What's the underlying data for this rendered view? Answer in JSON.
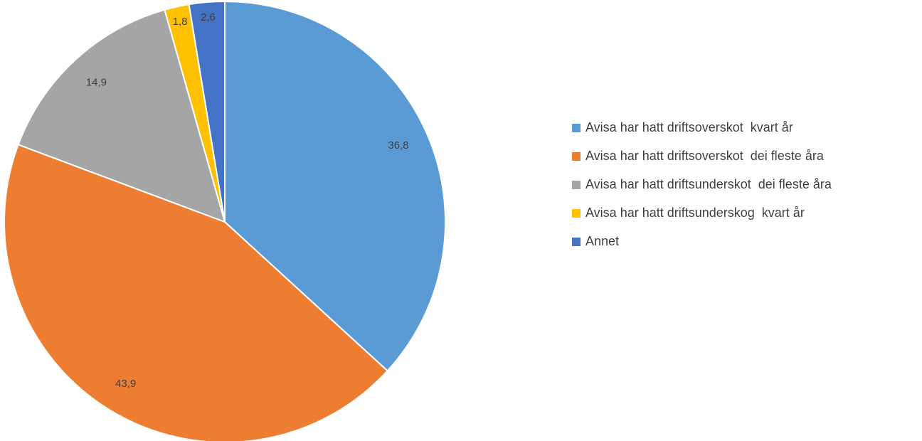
{
  "chart_data": {
    "type": "pie",
    "title": "",
    "start_angle_deg": 0,
    "direction": "clockwise",
    "legend_position": "right",
    "slices": [
      {
        "label": "Avisa har hatt driftsoverskot  kvart år",
        "value": 36.8,
        "display": "36,8",
        "color": "#5B9BD5"
      },
      {
        "label": "Avisa har hatt driftsoverskot  dei fleste åra",
        "value": 43.9,
        "display": "43,9",
        "color": "#ED7D31"
      },
      {
        "label": "Avisa har hatt driftsunderskot  dei fleste åra",
        "value": 14.9,
        "display": "14,9",
        "color": "#A5A5A5"
      },
      {
        "label": "Avisa har hatt driftsunderskog  kvart år",
        "value": 1.8,
        "display": "1,8",
        "color": "#FFC000"
      },
      {
        "label": "Annet",
        "value": 2.6,
        "display": "2,6",
        "color": "#4472C4"
      }
    ]
  }
}
